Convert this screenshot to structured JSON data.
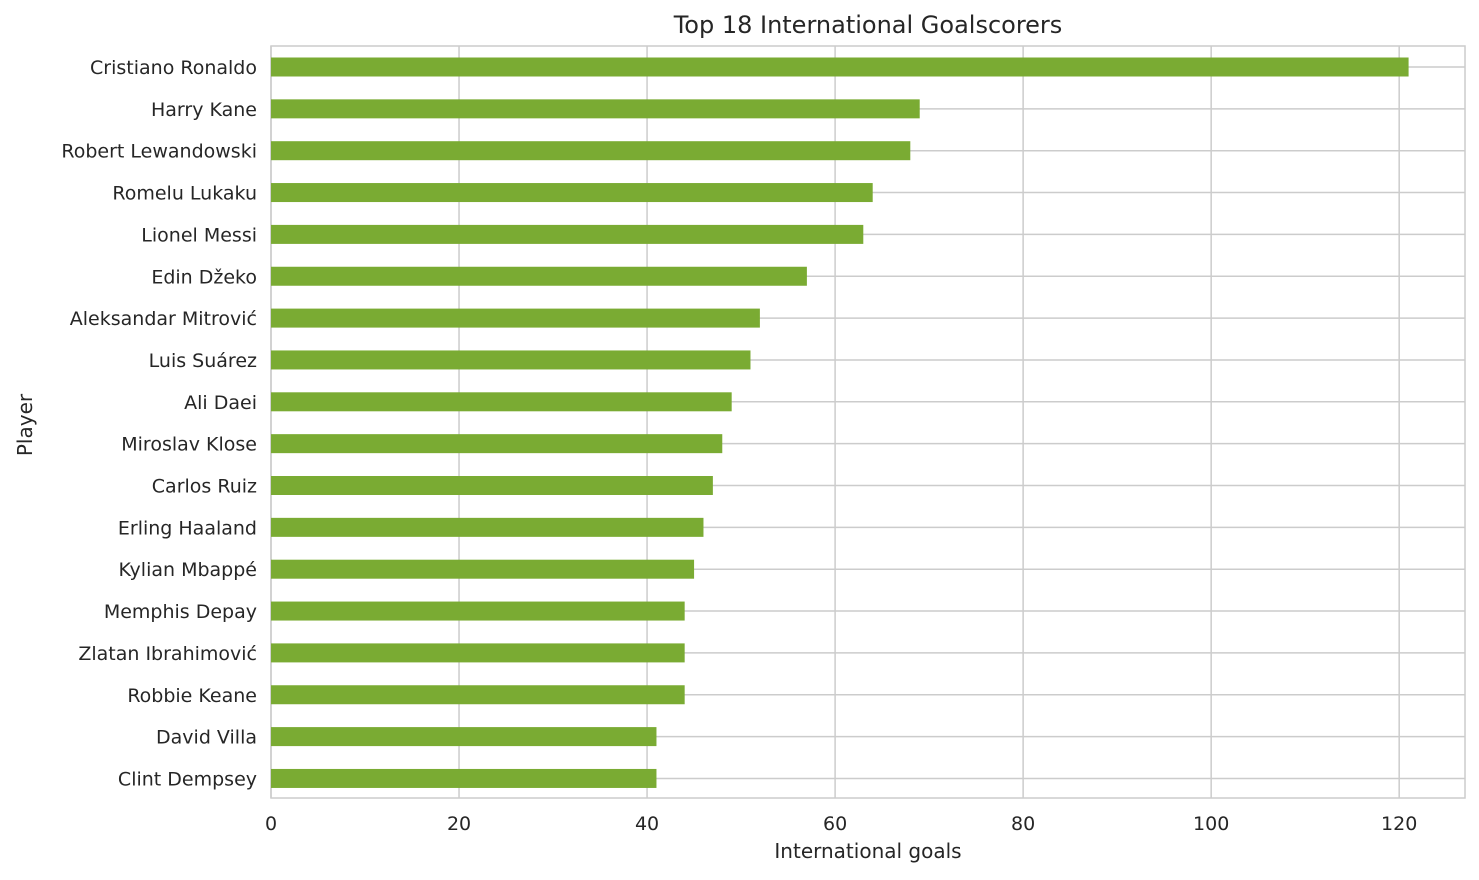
{
  "chart_data": {
    "type": "bar",
    "orientation": "horizontal",
    "title": "Top 18 International Goalscorers",
    "xlabel": "International goals",
    "ylabel": "Player",
    "xlim": [
      0,
      127
    ],
    "xticks": [
      0,
      20,
      40,
      60,
      80,
      100,
      120
    ],
    "grid": true,
    "bar_color": "#7aab33",
    "grid_color": "#cccccc",
    "categories": [
      "Cristiano Ronaldo",
      "Harry Kane",
      "Robert Lewandowski",
      "Romelu Lukaku",
      "Lionel Messi",
      "Edin Džeko",
      "Aleksandar Mitrović",
      "Luis Suárez",
      "Ali Daei",
      "Miroslav Klose",
      "Carlos Ruiz",
      "Erling Haaland",
      "Kylian Mbappé",
      "Memphis Depay",
      "Zlatan Ibrahimović",
      "Robbie Keane",
      "David Villa",
      "Clint Dempsey"
    ],
    "values": [
      121,
      69,
      68,
      64,
      63,
      57,
      52,
      51,
      49,
      48,
      47,
      46,
      45,
      44,
      44,
      44,
      41,
      41
    ]
  }
}
